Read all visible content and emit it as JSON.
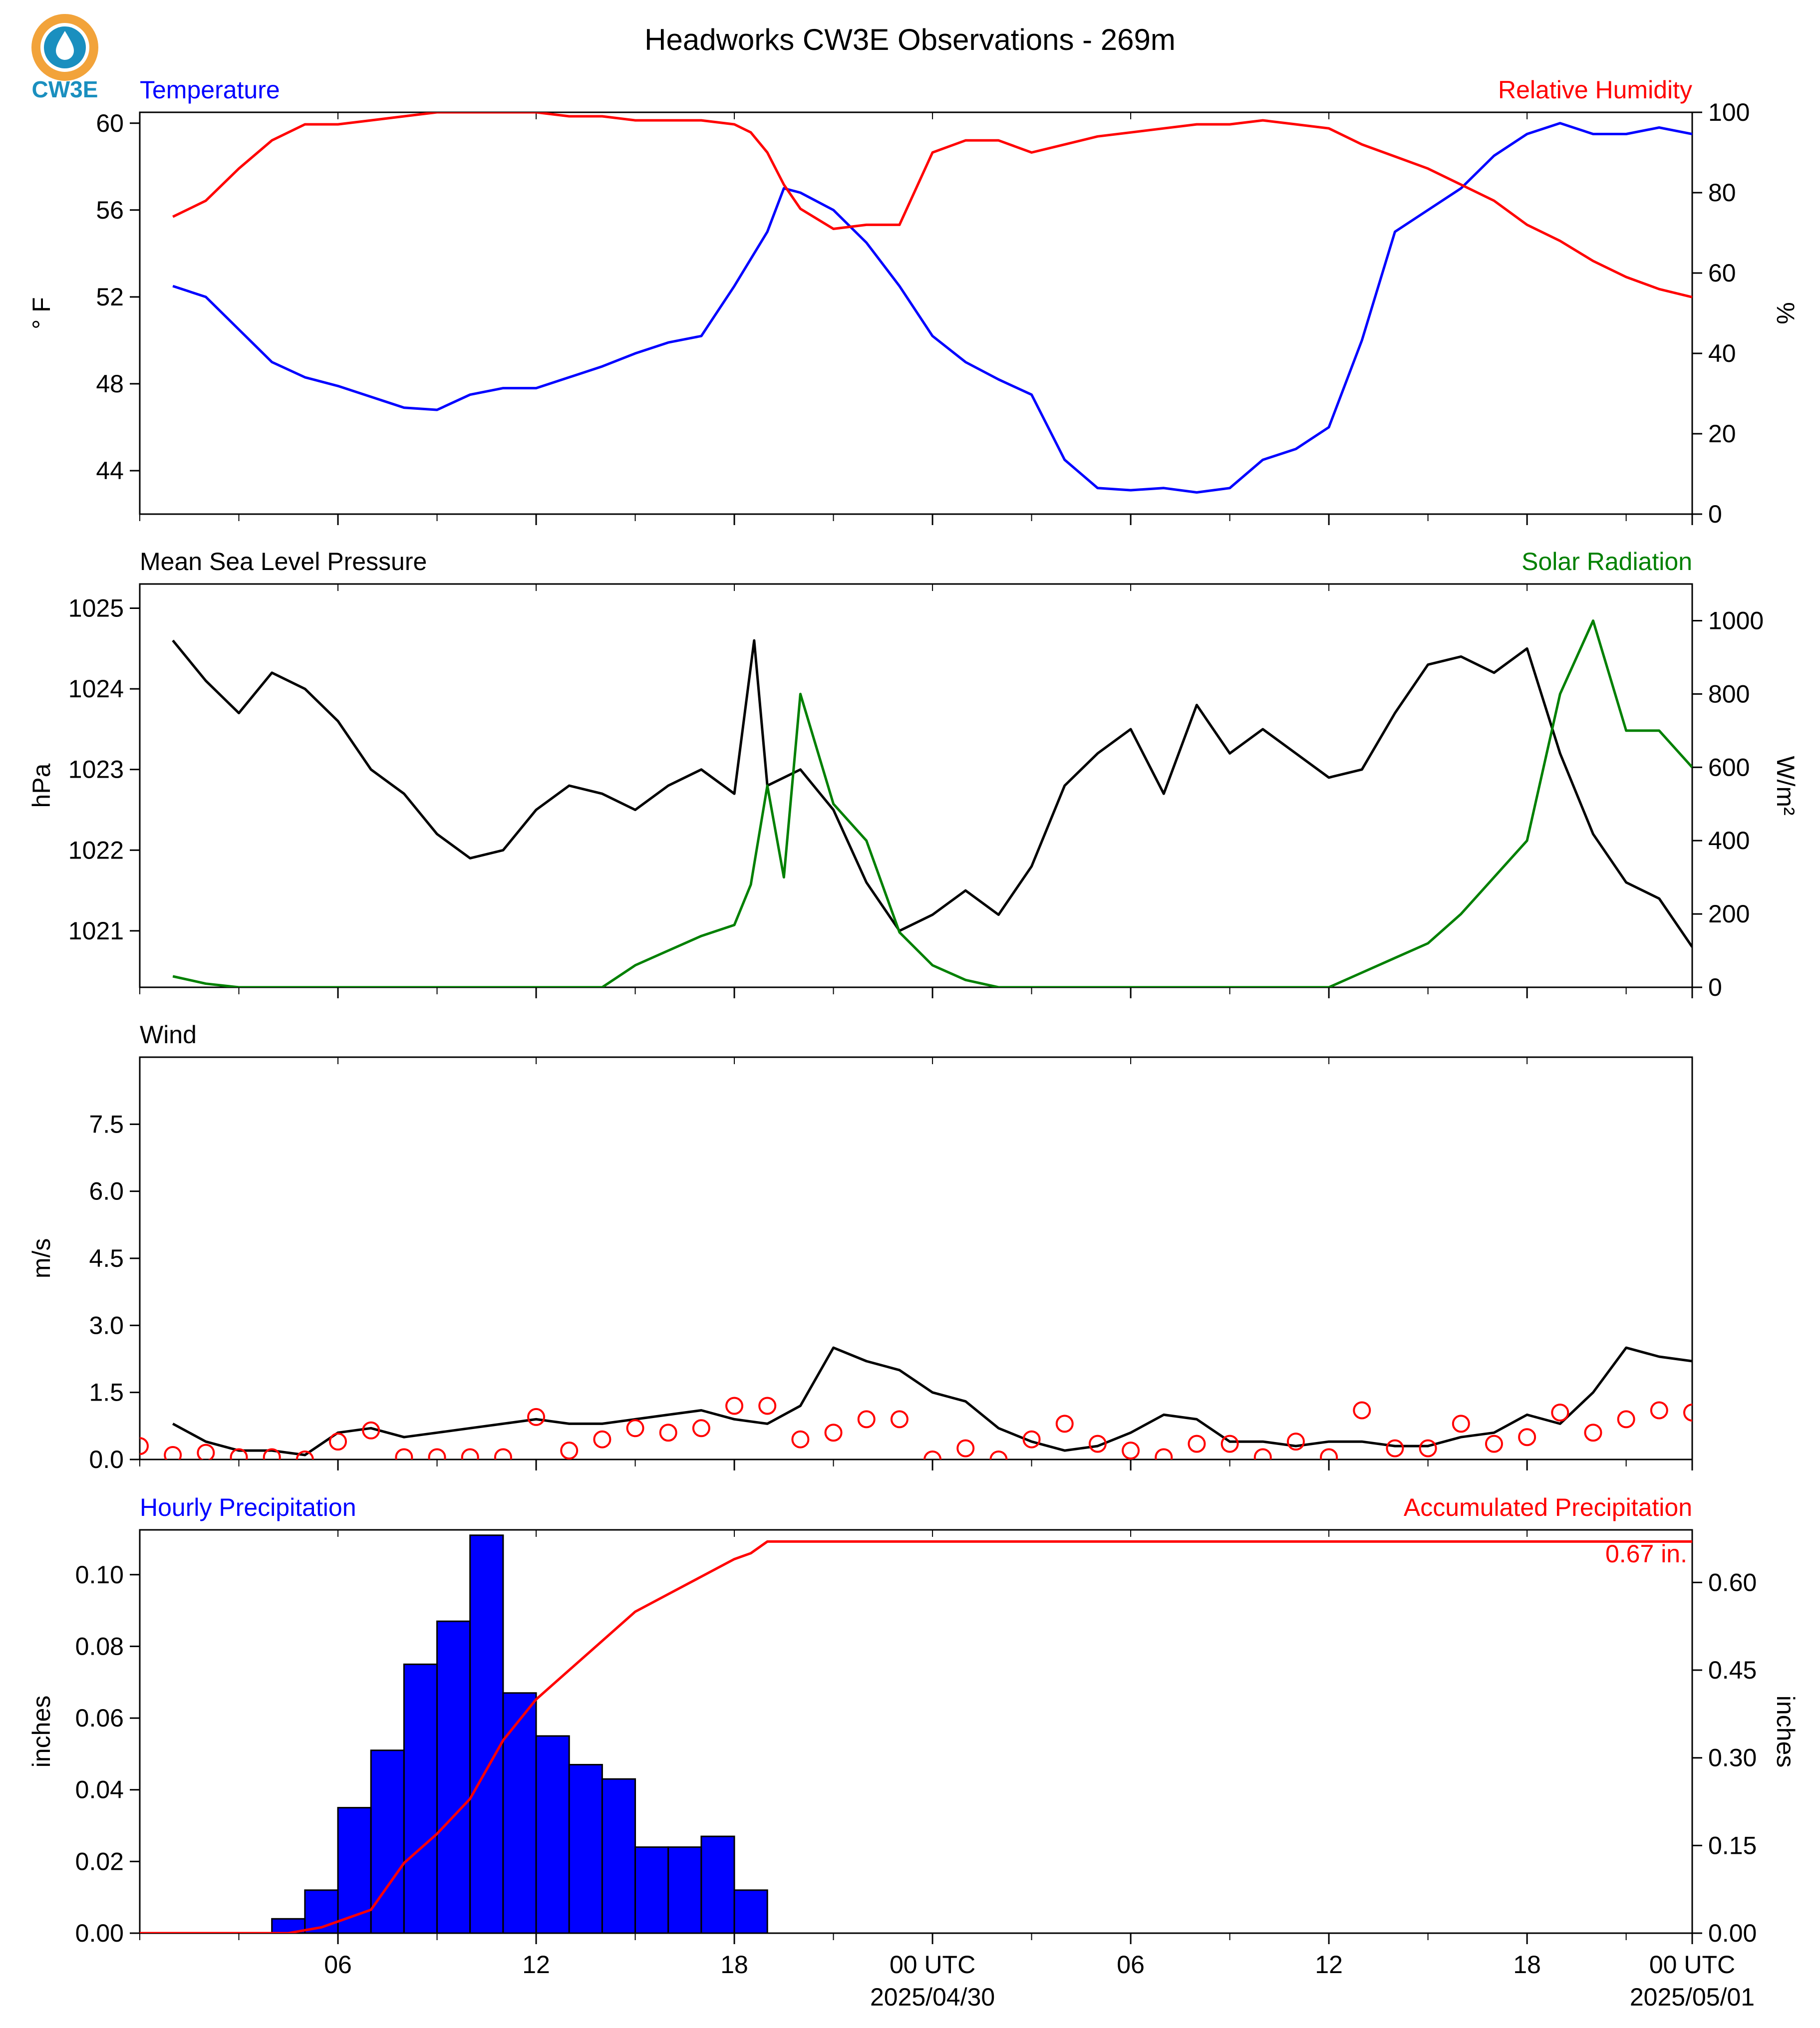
{
  "title": "Headworks CW3E Observations - 269m",
  "logo": {
    "text": "CW3E",
    "colors": {
      "ring": "#f2a33a",
      "drop": "#1a6fa8",
      "text": "#1a8fbf"
    }
  },
  "colors": {
    "temperature": "#0000ff",
    "humidity": "#ff0000",
    "pressure": "#000000",
    "solar": "#008000",
    "wind": "#000000",
    "barb": "#ff0000",
    "precip_bar": "#0000ff",
    "precip_acc": "#ff0000"
  },
  "x_axis": {
    "range_hours": [
      -6,
      41
    ],
    "ticks": [
      {
        "h": 0,
        "label": "06"
      },
      {
        "h": 6,
        "label": "12"
      },
      {
        "h": 12,
        "label": "18"
      },
      {
        "h": 18,
        "label": "00 UTC",
        "sub": "2025/04/30"
      },
      {
        "h": 24,
        "label": "06"
      },
      {
        "h": 30,
        "label": "12"
      },
      {
        "h": 36,
        "label": "18"
      },
      {
        "h": 41,
        "label": "00 UTC",
        "sub": "2025/05/01"
      }
    ]
  },
  "chart_data": [
    {
      "type": "line",
      "panel": "temperature-humidity",
      "left_title": "Temperature",
      "right_title": "Relative Humidity",
      "ylabel": "° F",
      "ylabel_right": "%",
      "ylim": [
        42,
        60.5
      ],
      "yticks": [
        44,
        48,
        52,
        56,
        60
      ],
      "ylim_right": [
        0,
        100
      ],
      "yticks_right": [
        0,
        20,
        40,
        60,
        80,
        100
      ],
      "series": [
        {
          "name": "Temperature",
          "axis": "left",
          "x": [
            -5,
            -4,
            -3,
            -2,
            -1,
            0,
            1,
            2,
            3,
            4,
            5,
            6,
            7,
            8,
            9,
            10,
            11,
            12,
            13,
            13.5,
            14,
            15,
            16,
            17,
            18,
            19,
            20,
            21,
            22,
            23,
            24,
            25,
            26,
            27,
            28,
            29,
            30,
            31,
            32,
            33,
            34,
            35,
            36,
            37,
            38,
            39,
            40,
            41
          ],
          "y": [
            52.5,
            52,
            50.5,
            49,
            48.3,
            47.9,
            47.4,
            46.9,
            46.8,
            47.5,
            47.8,
            47.8,
            48.3,
            48.8,
            49.4,
            49.9,
            50.2,
            52.5,
            55,
            57,
            56.8,
            56,
            54.5,
            52.5,
            50.2,
            49,
            48.2,
            47.5,
            44.5,
            43.2,
            43.1,
            43.2,
            43,
            43.2,
            44.5,
            45,
            46,
            50,
            55,
            56,
            57,
            58.5,
            59.5,
            60,
            59.5,
            59.5,
            59.8,
            59.5
          ]
        },
        {
          "name": "Relative Humidity",
          "axis": "right",
          "x": [
            -5,
            -4,
            -3,
            -2,
            -1,
            0,
            1,
            2,
            3,
            4,
            5,
            6,
            7,
            8,
            9,
            10,
            11,
            12,
            12.5,
            13,
            13.5,
            14,
            15,
            16,
            17,
            18,
            19,
            20,
            21,
            22,
            23,
            24,
            25,
            26,
            27,
            28,
            29,
            30,
            31,
            32,
            33,
            34,
            35,
            36,
            37,
            38,
            39,
            40,
            41
          ],
          "y": [
            74,
            78,
            86,
            93,
            97,
            97,
            98,
            99,
            100,
            100,
            100,
            100,
            99,
            99,
            98,
            98,
            98,
            97,
            95,
            90,
            82,
            76,
            71,
            72,
            72,
            90,
            93,
            93,
            90,
            92,
            94,
            95,
            96,
            97,
            97,
            98,
            97,
            96,
            92,
            89,
            86,
            82,
            78,
            72,
            68,
            63,
            59,
            56,
            54
          ]
        }
      ]
    },
    {
      "type": "line",
      "panel": "pressure-solar",
      "left_title": "Mean Sea Level Pressure",
      "right_title": "Solar Radiation",
      "ylabel": "hPa",
      "ylabel_right": "W/m²",
      "ylim": [
        1020.3,
        1025.3
      ],
      "yticks": [
        1021,
        1022,
        1023,
        1024,
        1025
      ],
      "ylim_right": [
        0,
        1100
      ],
      "yticks_right": [
        0,
        200,
        400,
        600,
        800,
        1000
      ],
      "series": [
        {
          "name": "Mean Sea Level Pressure",
          "axis": "left",
          "x": [
            -5,
            -4,
            -3,
            -2,
            -1,
            0,
            1,
            2,
            3,
            4,
            5,
            6,
            7,
            8,
            9,
            10,
            11,
            12,
            12.6,
            13,
            14,
            15,
            16,
            17,
            18,
            19,
            20,
            21,
            22,
            23,
            24,
            25,
            26,
            27,
            28,
            29,
            30,
            31,
            32,
            33,
            34,
            35,
            36,
            37,
            38,
            39,
            40,
            41
          ],
          "y": [
            1024.6,
            1024.1,
            1023.7,
            1024.2,
            1024,
            1023.6,
            1023,
            1022.7,
            1022.2,
            1021.9,
            1022,
            1022.5,
            1022.8,
            1022.7,
            1022.5,
            1022.8,
            1023,
            1022.7,
            1024.6,
            1022.8,
            1023,
            1022.5,
            1021.6,
            1021,
            1021.2,
            1021.5,
            1021.2,
            1021.8,
            1022.8,
            1023.2,
            1023.5,
            1022.7,
            1023.8,
            1023.2,
            1023.5,
            1023.2,
            1022.9,
            1023,
            1023.7,
            1024.3,
            1024.4,
            1024.2,
            1024.5,
            1023.2,
            1022.2,
            1021.6,
            1021.4,
            1020.8
          ]
        },
        {
          "name": "Solar Radiation",
          "axis": "right",
          "x": [
            -5,
            -4,
            -3,
            -2,
            -1,
            0,
            1,
            2,
            3,
            4,
            5,
            6,
            7,
            8,
            9,
            10,
            11,
            12,
            12.5,
            13,
            13.5,
            14,
            15,
            16,
            17,
            18,
            19,
            20,
            21,
            22,
            23,
            24,
            25,
            26,
            27,
            28,
            29,
            30,
            31,
            32,
            33,
            34,
            35,
            36,
            36.5,
            37,
            38,
            39,
            40,
            41
          ],
          "y": [
            30,
            10,
            0,
            0,
            0,
            0,
            0,
            0,
            0,
            0,
            0,
            0,
            0,
            0,
            60,
            100,
            140,
            170,
            280,
            550,
            300,
            800,
            500,
            400,
            150,
            60,
            20,
            0,
            0,
            0,
            0,
            0,
            0,
            0,
            0,
            0,
            0,
            0,
            40,
            80,
            120,
            200,
            300,
            400,
            600,
            800,
            1000,
            700,
            700,
            600
          ]
        }
      ]
    },
    {
      "type": "line",
      "panel": "wind",
      "left_title": "Wind",
      "ylabel": "m/s",
      "ylim": [
        0,
        9
      ],
      "yticks": [
        0.0,
        1.5,
        3.0,
        4.5,
        6.0,
        7.5
      ],
      "series": [
        {
          "name": "Wind",
          "axis": "left",
          "x": [
            -5,
            -4,
            -3,
            -2,
            -1,
            0,
            1,
            2,
            3,
            4,
            5,
            6,
            7,
            8,
            9,
            10,
            11,
            12,
            13,
            14,
            15,
            16,
            17,
            18,
            19,
            20,
            21,
            22,
            23,
            24,
            25,
            26,
            27,
            28,
            29,
            30,
            31,
            32,
            33,
            34,
            35,
            36,
            37,
            38,
            39,
            40,
            41
          ],
          "y": [
            0.8,
            0.4,
            0.2,
            0.2,
            0.1,
            0.6,
            0.7,
            0.5,
            0.6,
            0.7,
            0.8,
            0.9,
            0.8,
            0.8,
            0.9,
            1,
            1.1,
            0.9,
            0.8,
            1.2,
            2.5,
            2.2,
            2,
            1.5,
            1.3,
            0.7,
            0.4,
            0.2,
            0.3,
            0.6,
            1,
            0.9,
            0.4,
            0.4,
            0.3,
            0.4,
            0.4,
            0.3,
            0.3,
            0.5,
            0.6,
            1,
            0.8,
            1.5,
            2.5,
            2.3,
            2.2
          ]
        },
        {
          "name": "Calm",
          "axis": "left",
          "x": [
            -6,
            -5,
            -4,
            -3,
            -2,
            -1,
            0,
            1,
            2,
            3,
            4,
            5,
            6,
            7,
            8,
            9,
            10,
            11,
            12,
            13,
            14,
            15,
            16,
            17,
            18,
            19,
            20,
            21,
            22,
            23,
            24,
            25,
            26,
            27,
            28,
            29,
            30,
            31,
            32,
            33,
            34,
            35,
            36,
            37,
            38,
            39,
            40,
            41
          ],
          "y": [
            0.3,
            0.1,
            0.15,
            0.05,
            0.05,
            0,
            0.4,
            0.65,
            0.05,
            0.05,
            0.05,
            0.05,
            0.95,
            0.2,
            0.45,
            0.7,
            0.6,
            0.7,
            1.2,
            1.2,
            0.45,
            0.6,
            0.9,
            0.9,
            0,
            0.25,
            0,
            0.45,
            0.8,
            0.35,
            0.2,
            0.05,
            0.35,
            0.35,
            0.05,
            0.4,
            0.05,
            1.1,
            0.25,
            0.25,
            0.8,
            0.35,
            0.5,
            1.05,
            0.6,
            0.9,
            1.1,
            1.05
          ]
        }
      ]
    },
    {
      "type": "bar",
      "panel": "precipitation",
      "left_title": "Hourly Precipitation",
      "right_title": "Accumulated Precipitation",
      "ylabel": "inches",
      "ylabel_right": "inches",
      "ylim": [
        0,
        0.1125
      ],
      "yticks": [
        0.0,
        0.02,
        0.04,
        0.06,
        0.08,
        0.1
      ],
      "ylim_right": [
        0,
        0.69
      ],
      "yticks_right": [
        0.0,
        0.15,
        0.3,
        0.45,
        0.6
      ],
      "annotation": "0.67 in.",
      "categories": [
        "05",
        "06",
        "07",
        "08",
        "09",
        "10",
        "11",
        "12",
        "13",
        "14",
        "15",
        "16",
        "17",
        "18",
        "19"
      ],
      "values": [
        0.004,
        0.012,
        0.035,
        0.051,
        0.075,
        0.087,
        0.111,
        0.067,
        0.055,
        0.047,
        0.043,
        0.024,
        0.024,
        0.027,
        0.012
      ],
      "series": [
        {
          "name": "Accumulated Precipitation",
          "axis": "right",
          "x": [
            -6,
            -1.5,
            -1,
            -0.5,
            0,
            0.5,
            1,
            1.5,
            2,
            3,
            4,
            5,
            6,
            7,
            8,
            9,
            10,
            11,
            12,
            12.5,
            13,
            41
          ],
          "y": [
            0,
            0,
            0.005,
            0.01,
            0.02,
            0.03,
            0.04,
            0.08,
            0.12,
            0.17,
            0.23,
            0.33,
            0.4,
            0.45,
            0.5,
            0.55,
            0.58,
            0.61,
            0.64,
            0.65,
            0.67,
            0.67
          ]
        }
      ]
    }
  ]
}
